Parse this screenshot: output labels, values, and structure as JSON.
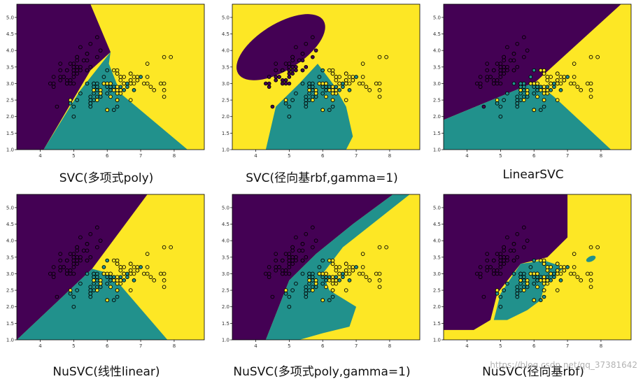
{
  "colors": {
    "purple": "#440154",
    "teal": "#21918c",
    "yellow": "#fde725"
  },
  "watermark": "https://blog.csdn.net/qq_37381642",
  "chart_data": [
    {
      "type": "scatter",
      "caption": "SVC(多项式poly)",
      "xticks": [
        4,
        5,
        6,
        7,
        8
      ],
      "yticks": [
        1.0,
        1.5,
        2.0,
        2.5,
        3.0,
        3.5,
        4.0,
        4.5,
        5.0
      ],
      "xlim": [
        3.3,
        8.9
      ],
      "ylim": [
        1.0,
        5.4
      ],
      "grid": false,
      "legend": "none"
    },
    {
      "type": "scatter",
      "caption": "SVC(径向基rbf,gamma=1)",
      "xticks": [
        4,
        5,
        6,
        7,
        8
      ],
      "yticks": [
        1.0,
        1.5,
        2.0,
        2.5,
        3.0,
        3.5,
        4.0,
        4.5,
        5.0
      ],
      "xlim": [
        3.3,
        8.9
      ],
      "ylim": [
        1.0,
        5.4
      ],
      "grid": false,
      "legend": "none"
    },
    {
      "type": "scatter",
      "caption": "LinearSVC",
      "xticks": [
        4,
        5,
        6,
        7,
        8
      ],
      "yticks": [
        1.0,
        1.5,
        2.0,
        2.5,
        3.0,
        3.5,
        4.0,
        4.5,
        5.0
      ],
      "xlim": [
        3.3,
        8.9
      ],
      "ylim": [
        1.0,
        5.4
      ],
      "grid": false,
      "legend": "none"
    },
    {
      "type": "scatter",
      "caption": "NuSVC(线性linear)",
      "xticks": [
        4,
        5,
        6,
        7,
        8
      ],
      "yticks": [
        1.0,
        1.5,
        2.0,
        2.5,
        3.0,
        3.5,
        4.0,
        4.5,
        5.0
      ],
      "xlim": [
        3.3,
        8.9
      ],
      "ylim": [
        1.0,
        5.4
      ],
      "grid": false,
      "legend": "none"
    },
    {
      "type": "scatter",
      "caption": "NuSVC(多项式poly,gamma=1)",
      "xticks": [
        4,
        5,
        6,
        7,
        8
      ],
      "yticks": [
        1.0,
        1.5,
        2.0,
        2.5,
        3.0,
        3.5,
        4.0,
        4.5,
        5.0
      ],
      "xlim": [
        3.3,
        8.9
      ],
      "ylim": [
        1.0,
        5.4
      ],
      "grid": false,
      "legend": "none"
    },
    {
      "type": "scatter",
      "caption": "NuSVC(径向基rbf)",
      "xticks": [
        4,
        5,
        6,
        7,
        8
      ],
      "yticks": [
        1.0,
        1.5,
        2.0,
        2.5,
        3.0,
        3.5,
        4.0,
        4.5,
        5.0
      ],
      "xlim": [
        3.3,
        8.9
      ],
      "ylim": [
        1.0,
        5.4
      ],
      "grid": false,
      "legend": "none"
    }
  ],
  "points": {
    "class0": [
      [
        5.1,
        3.5
      ],
      [
        4.9,
        3.0
      ],
      [
        4.7,
        3.2
      ],
      [
        4.6,
        3.1
      ],
      [
        5.0,
        3.6
      ],
      [
        5.4,
        3.9
      ],
      [
        4.6,
        3.4
      ],
      [
        5.0,
        3.4
      ],
      [
        4.4,
        2.9
      ],
      [
        4.9,
        3.1
      ],
      [
        5.4,
        3.7
      ],
      [
        4.8,
        3.4
      ],
      [
        4.8,
        3.0
      ],
      [
        4.3,
        3.0
      ],
      [
        5.8,
        4.0
      ],
      [
        5.7,
        4.4
      ],
      [
        5.4,
        3.9
      ],
      [
        5.1,
        3.5
      ],
      [
        5.7,
        3.8
      ],
      [
        5.1,
        3.8
      ],
      [
        5.4,
        3.4
      ],
      [
        5.1,
        3.7
      ],
      [
        4.6,
        3.6
      ],
      [
        5.1,
        3.3
      ],
      [
        4.8,
        3.4
      ],
      [
        5.0,
        3.0
      ],
      [
        5.0,
        3.4
      ],
      [
        5.2,
        3.5
      ],
      [
        5.2,
        3.4
      ],
      [
        4.7,
        3.2
      ],
      [
        4.8,
        3.1
      ],
      [
        5.4,
        3.4
      ],
      [
        5.2,
        4.1
      ],
      [
        5.5,
        4.2
      ],
      [
        4.9,
        3.1
      ],
      [
        5.0,
        3.2
      ],
      [
        5.5,
        3.5
      ],
      [
        4.9,
        3.6
      ],
      [
        4.4,
        3.0
      ],
      [
        5.1,
        3.4
      ],
      [
        5.0,
        3.5
      ],
      [
        4.5,
        2.3
      ],
      [
        4.4,
        3.2
      ],
      [
        5.0,
        3.5
      ],
      [
        5.1,
        3.8
      ],
      [
        4.8,
        3.0
      ],
      [
        5.1,
        3.8
      ],
      [
        4.6,
        3.2
      ],
      [
        5.3,
        3.7
      ],
      [
        5.0,
        3.3
      ]
    ],
    "class1": [
      [
        7.0,
        3.2
      ],
      [
        6.4,
        3.2
      ],
      [
        6.9,
        3.1
      ],
      [
        5.5,
        2.3
      ],
      [
        6.5,
        2.8
      ],
      [
        5.7,
        2.8
      ],
      [
        6.3,
        3.3
      ],
      [
        4.9,
        2.4
      ],
      [
        6.6,
        2.9
      ],
      [
        5.2,
        2.7
      ],
      [
        5.0,
        2.0
      ],
      [
        5.9,
        3.0
      ],
      [
        6.0,
        2.2
      ],
      [
        6.1,
        2.9
      ],
      [
        5.6,
        2.9
      ],
      [
        6.7,
        3.1
      ],
      [
        5.6,
        3.0
      ],
      [
        5.8,
        2.7
      ],
      [
        6.2,
        2.2
      ],
      [
        5.6,
        2.5
      ],
      [
        5.9,
        3.2
      ],
      [
        6.1,
        2.8
      ],
      [
        6.3,
        2.5
      ],
      [
        6.1,
        2.8
      ],
      [
        6.4,
        2.9
      ],
      [
        6.6,
        3.0
      ],
      [
        6.8,
        2.8
      ],
      [
        6.7,
        3.0
      ],
      [
        6.0,
        2.9
      ],
      [
        5.7,
        2.6
      ],
      [
        5.5,
        2.4
      ],
      [
        5.5,
        2.4
      ],
      [
        5.8,
        2.7
      ],
      [
        6.0,
        2.7
      ],
      [
        5.4,
        3.0
      ],
      [
        6.0,
        3.4
      ],
      [
        6.7,
        3.1
      ],
      [
        6.3,
        2.3
      ],
      [
        5.6,
        3.0
      ],
      [
        5.5,
        2.5
      ],
      [
        5.5,
        2.6
      ],
      [
        6.1,
        3.0
      ],
      [
        5.8,
        2.6
      ],
      [
        5.0,
        2.3
      ],
      [
        5.6,
        2.7
      ],
      [
        5.7,
        3.0
      ],
      [
        5.7,
        2.9
      ],
      [
        6.2,
        2.9
      ],
      [
        5.1,
        2.5
      ],
      [
        5.7,
        2.8
      ]
    ],
    "class2": [
      [
        6.3,
        3.3
      ],
      [
        5.8,
        2.7
      ],
      [
        7.1,
        3.0
      ],
      [
        6.3,
        2.9
      ],
      [
        6.5,
        3.0
      ],
      [
        7.6,
        3.0
      ],
      [
        4.9,
        2.5
      ],
      [
        7.3,
        2.9
      ],
      [
        6.7,
        2.5
      ],
      [
        7.2,
        3.6
      ],
      [
        6.5,
        3.2
      ],
      [
        6.4,
        2.7
      ],
      [
        6.8,
        3.0
      ],
      [
        5.7,
        2.5
      ],
      [
        5.8,
        2.8
      ],
      [
        6.4,
        3.2
      ],
      [
        6.5,
        3.0
      ],
      [
        7.7,
        3.8
      ],
      [
        7.7,
        2.6
      ],
      [
        6.0,
        2.2
      ],
      [
        6.9,
        3.2
      ],
      [
        5.6,
        2.8
      ],
      [
        7.7,
        2.8
      ],
      [
        6.3,
        2.7
      ],
      [
        6.7,
        3.3
      ],
      [
        7.2,
        3.2
      ],
      [
        6.2,
        2.8
      ],
      [
        6.1,
        3.0
      ],
      [
        6.4,
        2.8
      ],
      [
        7.2,
        3.0
      ],
      [
        7.4,
        2.8
      ],
      [
        7.9,
        3.8
      ],
      [
        6.4,
        2.8
      ],
      [
        6.3,
        2.8
      ],
      [
        6.1,
        2.6
      ],
      [
        7.7,
        3.0
      ],
      [
        6.3,
        3.4
      ],
      [
        6.4,
        3.1
      ],
      [
        6.0,
        3.0
      ],
      [
        6.9,
        3.1
      ],
      [
        6.7,
        3.1
      ],
      [
        6.9,
        3.1
      ],
      [
        5.8,
        2.7
      ],
      [
        6.8,
        3.2
      ],
      [
        6.7,
        3.3
      ],
      [
        6.7,
        3.0
      ],
      [
        6.3,
        2.5
      ],
      [
        6.5,
        3.0
      ],
      [
        6.2,
        3.4
      ],
      [
        5.9,
        3.0
      ]
    ]
  }
}
